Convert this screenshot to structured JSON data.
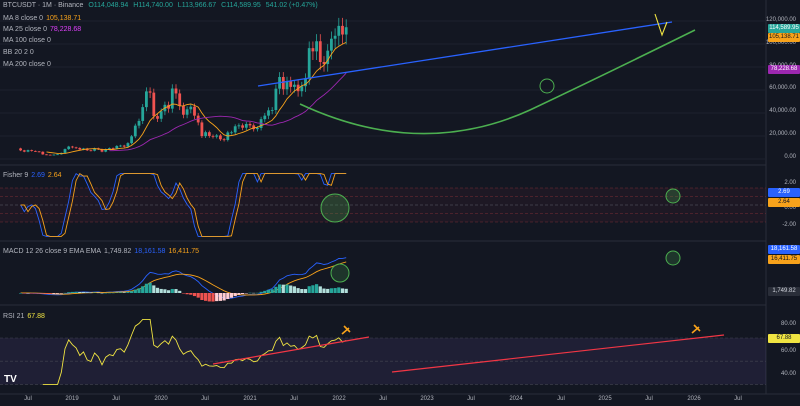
{
  "header": {
    "symbol": "BTCUSDT · 1M · Binance",
    "open": "O114,048.94",
    "high": "H114,740.00",
    "low": "L113,966.67",
    "close": "C114,589.95",
    "change": "541.02 (+0.47%)",
    "indicators": [
      {
        "label": "MA 8 close 0",
        "value": "105,138.71",
        "color": "#f7a21b"
      },
      {
        "label": "MA 25 close 0",
        "value": "78,228.68",
        "color": "#e040fb"
      },
      {
        "label": "MA 100 close 0",
        "value": "",
        "color": "#b2b5be"
      },
      {
        "label": "BB 20 2 0",
        "value": "",
        "color": "#b2b5be"
      },
      {
        "label": "MA 200 close 0",
        "value": "",
        "color": "#b2b5be"
      }
    ]
  },
  "price_axis": [
    "120,000.00",
    "100,000.00",
    "80,000.00",
    "60,000.00",
    "40,000.00",
    "20,000.00",
    "0.00"
  ],
  "price_tags": [
    {
      "value": "114,589.95",
      "color": "#26a69a"
    },
    {
      "value": "105,138.71",
      "color": "#f7a21b"
    },
    {
      "value": "78,228.68",
      "color": "#9c27b0"
    }
  ],
  "fisher": {
    "label": "Fisher 9",
    "v1": "2.69",
    "v2": "2.64",
    "axis": [
      "2.00",
      "0.00",
      "-2.00"
    ],
    "tags": [
      {
        "value": "2.69",
        "color": "#2962ff"
      },
      {
        "value": "2.64",
        "color": "#f7a21b"
      }
    ]
  },
  "macd": {
    "label": "MACD 12 26 close 9 EMA EMA",
    "v1": "1,749.82",
    "v2": "18,161.58",
    "v3": "16,411.75",
    "tags": [
      {
        "value": "18,161.58",
        "color": "#2962ff"
      },
      {
        "value": "16,411.75",
        "color": "#f7a21b"
      },
      {
        "value": "1,749.82",
        "color": "#2a2e39"
      }
    ]
  },
  "rsi": {
    "label": "RSI 21",
    "v1": "67.88",
    "axis": [
      "80.00",
      "60.00",
      "40.00"
    ],
    "tag": "67.88"
  },
  "time_axis": [
    "Jul",
    "2019",
    "Jul",
    "2020",
    "Jul",
    "2021",
    "Jul",
    "2022",
    "Jul",
    "2023",
    "Jul",
    "2024",
    "Jul",
    "2025",
    "Jul",
    "2026",
    "Jul"
  ],
  "logo": "TV",
  "colors": {
    "up": "#26a69a",
    "down": "#ef5350",
    "background": "#131722",
    "ma8": "#f7a21b",
    "ma25": "#9c27b0",
    "trend_blue": "#2962ff",
    "support_green": "#4caf50",
    "rsi": "#f0e442",
    "rsi_trend": "#f23645"
  },
  "chart_data": {
    "type": "candlestick",
    "interval": "1M",
    "start": "2018-05",
    "ylim": [
      0,
      125000
    ],
    "candles": [
      [
        9200,
        7500
      ],
      [
        7500,
        6400
      ],
      [
        6400,
        7700
      ],
      [
        7700,
        7000
      ],
      [
        7000,
        6600
      ],
      [
        6600,
        6300
      ],
      [
        6300,
        4000
      ],
      [
        4000,
        3700
      ],
      [
        3700,
        3400
      ],
      [
        3400,
        3800
      ],
      [
        3800,
        4100
      ],
      [
        4100,
        5300
      ],
      [
        5300,
        8600
      ],
      [
        8600,
        10800
      ],
      [
        10800,
        10100
      ],
      [
        10100,
        9600
      ],
      [
        9600,
        8300
      ],
      [
        8300,
        9150
      ],
      [
        9150,
        7550
      ],
      [
        7550,
        7200
      ],
      [
        7200,
        9350
      ],
      [
        9350,
        8500
      ],
      [
        8500,
        6400
      ],
      [
        6400,
        8600
      ],
      [
        8600,
        9450
      ],
      [
        9450,
        9150
      ],
      [
        9150,
        11350
      ],
      [
        11350,
        11650
      ],
      [
        11650,
        10780
      ],
      [
        10780,
        13800
      ],
      [
        13800,
        19700
      ],
      [
        19700,
        29000
      ],
      [
        29000,
        33100
      ],
      [
        33100,
        45100
      ],
      [
        45100,
        58800
      ],
      [
        58800,
        57700
      ],
      [
        57700,
        37300
      ],
      [
        37300,
        35000
      ],
      [
        35000,
        41500
      ],
      [
        41500,
        47100
      ],
      [
        47100,
        43800
      ],
      [
        43800,
        61300
      ],
      [
        61300,
        57000
      ],
      [
        57000,
        46200
      ],
      [
        46200,
        38500
      ],
      [
        38500,
        43200
      ],
      [
        43200,
        45500
      ],
      [
        45500,
        37700
      ],
      [
        37700,
        31800
      ],
      [
        31800,
        19900
      ],
      [
        19900,
        23300
      ],
      [
        23300,
        20050
      ],
      [
        20050,
        19400
      ],
      [
        19400,
        20500
      ],
      [
        20500,
        17150
      ],
      [
        17150,
        16550
      ],
      [
        16550,
        23100
      ],
      [
        23100,
        23150
      ],
      [
        23150,
        28450
      ],
      [
        28450,
        29250
      ],
      [
        29250,
        27200
      ],
      [
        27200,
        30450
      ],
      [
        30450,
        29250
      ],
      [
        29250,
        25950
      ],
      [
        25950,
        26950
      ],
      [
        26950,
        34650
      ],
      [
        34650,
        37700
      ],
      [
        37700,
        42300
      ],
      [
        42300,
        42600
      ],
      [
        42600,
        61150
      ],
      [
        61150,
        71300
      ],
      [
        71300,
        60650
      ],
      [
        60650,
        67500
      ],
      [
        67500,
        62700
      ],
      [
        62700,
        64600
      ],
      [
        64600,
        58950
      ],
      [
        58950,
        63300
      ],
      [
        63300,
        70200
      ],
      [
        70200,
        96400
      ],
      [
        96400,
        93600
      ],
      [
        93600,
        102400
      ],
      [
        102400,
        84350
      ],
      [
        84350,
        82550
      ],
      [
        82550,
        94200
      ],
      [
        94200,
        104600
      ],
      [
        104600,
        107150
      ],
      [
        107150,
        115750
      ],
      [
        115750,
        108250
      ],
      [
        108250,
        114590
      ]
    ]
  }
}
